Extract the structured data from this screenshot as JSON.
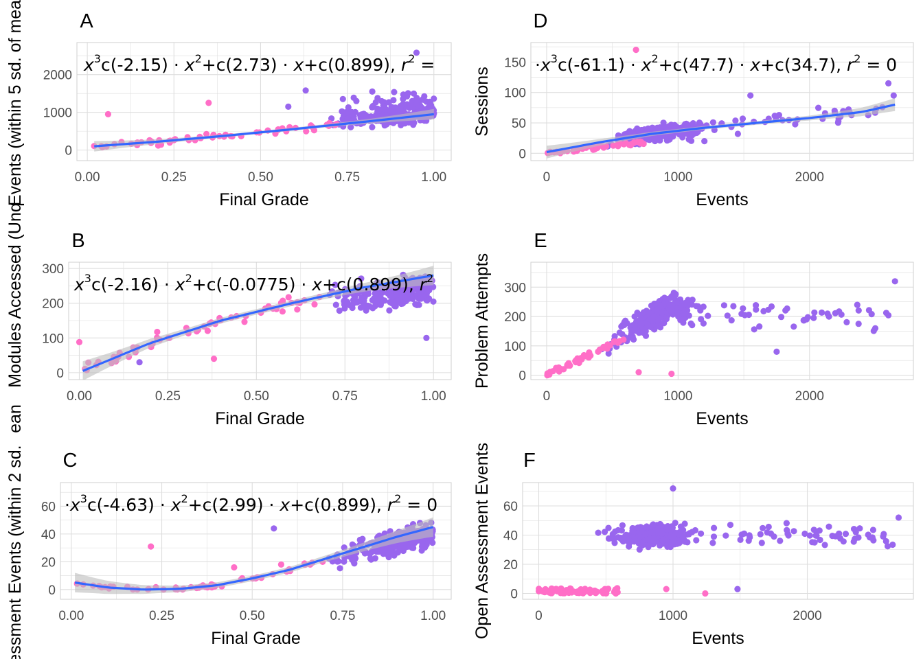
{
  "colors": {
    "low": "#ff6ec7",
    "high": "#9966ee",
    "fit": "#3366ff",
    "band": "#bdbdbd",
    "grid": "#dedede",
    "border": "#cfcfcf"
  },
  "shared_ylabel_fragments": [
    "Events (within 5 sd. of mea",
    "Modules Accessed (Unq",
    "ssessment Events (within 2 sd.",
    "ean"
  ],
  "chart_data": [
    {
      "id": "A",
      "label": "A",
      "type": "scatter",
      "xlabel": "Final Grade",
      "ylabel": "",
      "xlim": [
        -0.03,
        1.05
      ],
      "ylim": [
        -280,
        2850
      ],
      "xticks": [
        0,
        0.25,
        0.5,
        0.75,
        1
      ],
      "xtick_labels": [
        "0.00",
        "0.25",
        "0.50",
        "0.75",
        "1.00"
      ],
      "yticks": [
        0,
        1000,
        2000
      ],
      "ytick_labels": [
        "0",
        "1000",
        "2000"
      ],
      "equation": [
        "x",
        "3",
        "c(-2.15)",
        "x",
        "2",
        "+c(2.73)",
        "x",
        "+c(0.899), ",
        "r",
        "2",
        " ="
      ],
      "fit": {
        "x": [
          0.02,
          0.2,
          0.4,
          0.6,
          0.8,
          1.0
        ],
        "y": [
          100,
          220,
          380,
          560,
          750,
          950
        ],
        "band": 40
      },
      "sample": {
        "seed": 11,
        "mode": "grade",
        "xcenter": 0.88,
        "n_high": 260,
        "n_low": 55,
        "low": {
          "x": [
            0.01,
            0.72
          ],
          "y": [
            0,
            1300
          ]
        },
        "high": {
          "y": [
            250,
            2400
          ]
        }
      },
      "extras": [
        [
          0.06,
          950,
          "low"
        ],
        [
          0.35,
          1250,
          "low"
        ],
        [
          0.58,
          1150,
          "high"
        ],
        [
          0.63,
          1580,
          "high"
        ],
        [
          0.95,
          2580,
          "high"
        ]
      ]
    },
    {
      "id": "B",
      "label": "B",
      "type": "scatter",
      "xlabel": "Final Grade",
      "ylabel": "",
      "xlim": [
        -0.03,
        1.05
      ],
      "ylim": [
        -20,
        318
      ],
      "xticks": [
        0,
        0.25,
        0.5,
        0.75,
        1
      ],
      "xtick_labels": [
        "0.00",
        "0.25",
        "0.50",
        "0.75",
        "1.00"
      ],
      "yticks": [
        0,
        100,
        200,
        300
      ],
      "ytick_labels": [
        "0",
        "100",
        "200",
        "300"
      ],
      "equation": [
        "x",
        "3",
        "c(-2.16)",
        "x",
        "2",
        "+c(-0.0775)",
        "x",
        "+c(0.899), ",
        "r",
        "2",
        ""
      ],
      "fit": {
        "x": [
          0.01,
          0.2,
          0.4,
          0.6,
          0.8,
          1.0
        ],
        "y": [
          5,
          85,
          150,
          200,
          245,
          280
        ],
        "band": 8
      },
      "sample": {
        "seed": 23,
        "mode": "grade-curve",
        "xcenter": 0.88,
        "n_high": 260,
        "n_low": 55,
        "low": {
          "x": [
            0.01,
            0.72
          ],
          "y": [
            0,
            300
          ]
        },
        "high": {
          "y": [
            130,
            305
          ]
        }
      },
      "extras": [
        [
          0.0,
          88,
          "low"
        ],
        [
          0.17,
          30,
          "high"
        ],
        [
          0.38,
          40,
          "low"
        ],
        [
          0.98,
          100,
          "high"
        ]
      ]
    },
    {
      "id": "C",
      "label": "C",
      "type": "scatter",
      "xlabel": "Final Grade",
      "ylabel": "",
      "xlim": [
        -0.03,
        1.05
      ],
      "ylim": [
        -7,
        77
      ],
      "xticks": [
        0,
        0.25,
        0.5,
        0.75,
        1
      ],
      "xtick_labels": [
        "0.00",
        "0.25",
        "0.50",
        "0.75",
        "1.00"
      ],
      "yticks": [
        0,
        20,
        40,
        60
      ],
      "ytick_labels": [
        "0",
        "20",
        "40",
        "60"
      ],
      "equation": [
        "x",
        "3",
        "c(-4.63)",
        "x",
        "2",
        "+c(2.99)",
        "x",
        "+c(0.899), ",
        "r",
        "2",
        " = 0"
      ],
      "fit": {
        "x": [
          0.01,
          0.1,
          0.2,
          0.3,
          0.4,
          0.5,
          0.6,
          0.7,
          0.8,
          0.9,
          1.0
        ],
        "y": [
          5,
          1.5,
          0,
          0.5,
          3,
          8,
          14,
          22,
          30,
          38,
          45
        ],
        "band": 2
      },
      "sample": {
        "seed": 37,
        "mode": "grade-c",
        "xcenter": 0.88,
        "n_high": 260,
        "n_low": 55,
        "low": {
          "x": [
            0.01,
            0.72
          ],
          "y": [
            0,
            20
          ]
        },
        "high": {
          "y": [
            10,
            70
          ]
        }
      },
      "extras": [
        [
          0.22,
          31,
          "low"
        ],
        [
          0.56,
          44,
          "high"
        ],
        [
          0.45,
          16,
          "low"
        ],
        [
          0.58,
          18,
          "low"
        ]
      ]
    },
    {
      "id": "D",
      "label": "D",
      "type": "scatter",
      "xlabel": "Events",
      "ylabel": "Sessions",
      "xlim": [
        -120,
        2790
      ],
      "ylim": [
        -12,
        182
      ],
      "xticks": [
        0,
        1000,
        2000
      ],
      "xtick_labels": [
        "0",
        "1000",
        "2000"
      ],
      "yticks": [
        0,
        50,
        100,
        150
      ],
      "ytick_labels": [
        "0",
        "50",
        "100",
        "150"
      ],
      "equation": [
        "x",
        "3",
        "c(-61.1)",
        "x",
        "2",
        "+c(47.7)",
        "x",
        "+c(34.7), ",
        "r",
        "2",
        " = 0"
      ],
      "fit": {
        "x": [
          0,
          400,
          800,
          1200,
          1600,
          2000,
          2400,
          2650
        ],
        "y": [
          2,
          18,
          32,
          42,
          50,
          58,
          68,
          80
        ],
        "band": 3
      },
      "sample": {
        "seed": 41,
        "mode": "events",
        "n_high": 280,
        "n_low": 50,
        "low": {
          "x": [
            0,
            750
          ],
          "y": [
            0,
            30
          ]
        },
        "high": {
          "x": [
            200,
            2650
          ],
          "y": [
            10,
            100
          ]
        }
      },
      "extras": [
        [
          680,
          170,
          "low"
        ],
        [
          1550,
          95,
          "high"
        ],
        [
          2600,
          115,
          "high"
        ],
        [
          2640,
          95,
          "high"
        ],
        [
          1200,
          20,
          "high"
        ]
      ]
    },
    {
      "id": "E",
      "label": "E",
      "type": "scatter",
      "xlabel": "Events",
      "ylabel": "Problem Attempts",
      "xlim": [
        -120,
        2790
      ],
      "ylim": [
        -15,
        385
      ],
      "xticks": [
        0,
        1000,
        2000
      ],
      "xtick_labels": [
        "0",
        "1000",
        "2000"
      ],
      "yticks": [
        0,
        100,
        200,
        300
      ],
      "ytick_labels": [
        "0",
        "100",
        "200",
        "300"
      ],
      "equation": [],
      "fit": null,
      "sample": {
        "seed": 53,
        "mode": "events-e",
        "n_high": 300,
        "n_low": 50,
        "low": {
          "x": [
            0,
            600
          ],
          "y": [
            0,
            180
          ]
        },
        "high": {
          "x": [
            250,
            2600
          ],
          "y": [
            60,
            370
          ]
        }
      },
      "extras": [
        [
          2650,
          320,
          "high"
        ],
        [
          2500,
          160,
          "high"
        ],
        [
          1750,
          80,
          "high"
        ],
        [
          950,
          5,
          "low"
        ],
        [
          700,
          10,
          "low"
        ]
      ]
    },
    {
      "id": "F",
      "label": "F",
      "type": "scatter",
      "xlabel": "Events",
      "ylabel": "Open Assessment Events",
      "xlim": [
        -120,
        2790
      ],
      "ylim": [
        -4,
        76
      ],
      "xticks": [
        0,
        1000,
        2000
      ],
      "xtick_labels": [
        "0",
        "1000",
        "2000"
      ],
      "yticks": [
        0,
        20,
        40,
        60
      ],
      "ytick_labels": [
        "0",
        "20",
        "40",
        "60"
      ],
      "equation": [],
      "fit": null,
      "sample": {
        "seed": 67,
        "mode": "events-f",
        "n_high": 320,
        "n_low": 70,
        "low": {
          "x": [
            0,
            600
          ],
          "y": [
            0,
            9
          ]
        },
        "high": {
          "x": [
            230,
            2650
          ],
          "y": [
            8,
            72
          ]
        }
      },
      "extras": [
        [
          1000,
          72,
          "high"
        ],
        [
          1240,
          0,
          "low"
        ],
        [
          950,
          3,
          "low"
        ],
        [
          1480,
          3,
          "high"
        ],
        [
          2680,
          52,
          "high"
        ]
      ]
    }
  ]
}
